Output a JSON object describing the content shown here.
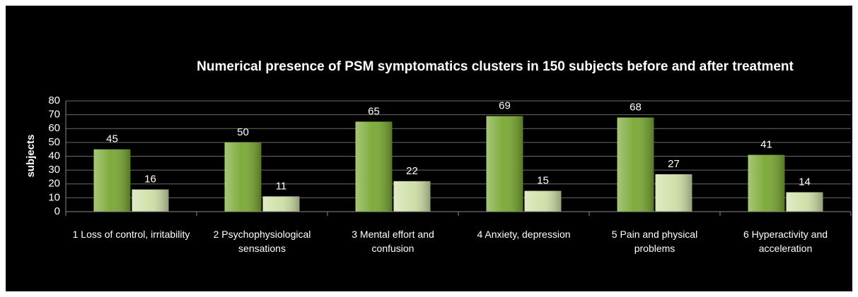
{
  "chart_data": {
    "type": "bar",
    "title": "Numerical presence of PSM symptomatics clusters in 150 subjects before and after treatment",
    "y_label": "subjects",
    "categories": [
      "1 Loss of control, irritability",
      "2 Psychophysiological sensations",
      "3 Mental effort and confusion",
      "4 Anxiety, depression",
      "5 Pain and physical problems",
      "6 Hyperactivity and acceleration"
    ],
    "series": [
      {
        "color": "#78a832",
        "values": [
          45,
          50,
          65,
          69,
          68,
          41
        ]
      },
      {
        "color": "#cfe0a8",
        "values": [
          16,
          11,
          22,
          15,
          27,
          14
        ]
      }
    ],
    "ylim": [
      0,
      80
    ],
    "yticks": [
      0,
      10,
      20,
      30,
      40,
      50,
      60,
      70,
      80
    ],
    "grid": true
  }
}
